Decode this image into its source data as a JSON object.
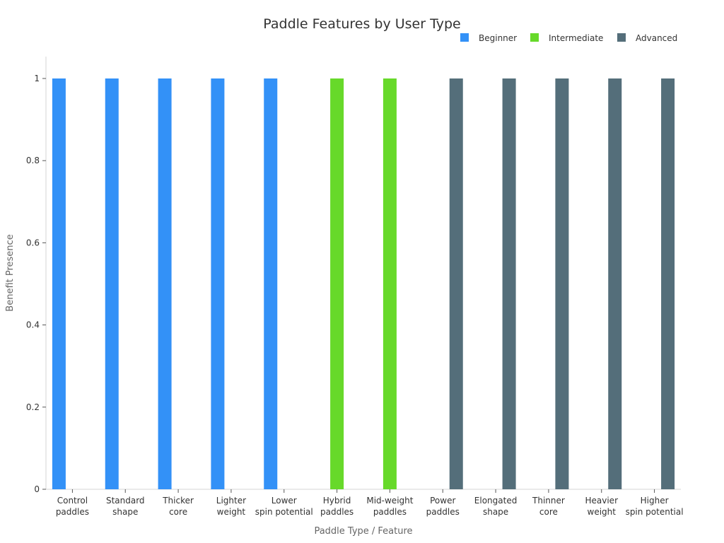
{
  "chart_data": {
    "type": "bar",
    "title": "Paddle Features by User Type",
    "xlabel": "Paddle Type / Feature",
    "ylabel": "Benefit Presence",
    "ylim": [
      0,
      1
    ],
    "yticks": [
      "0",
      "0.2",
      "0.4",
      "0.6",
      "0.8",
      "1"
    ],
    "grid": false,
    "legend_position": "top-right",
    "categories": [
      [
        "Control",
        "paddles"
      ],
      [
        "Standard",
        "shape"
      ],
      [
        "Thicker",
        "core"
      ],
      [
        "Lighter",
        "weight"
      ],
      [
        "Lower",
        "spin potential"
      ],
      [
        "Hybrid",
        "paddles"
      ],
      [
        "Mid-weight",
        "paddles"
      ],
      [
        "Power",
        "paddles"
      ],
      [
        "Elongated",
        "shape"
      ],
      [
        "Thinner",
        "core"
      ],
      [
        "Heavier",
        "weight"
      ],
      [
        "Higher",
        "spin potential"
      ]
    ],
    "series": [
      {
        "name": "Beginner",
        "color": "#3391F7",
        "values": [
          1,
          1,
          1,
          1,
          1,
          0,
          0,
          0,
          0,
          0,
          0,
          0
        ]
      },
      {
        "name": "Intermediate",
        "color": "#67D92A",
        "values": [
          0,
          0,
          0,
          0,
          0,
          1,
          1,
          0,
          0,
          0,
          0,
          0
        ]
      },
      {
        "name": "Advanced",
        "color": "#546E7A",
        "values": [
          0,
          0,
          0,
          0,
          0,
          0,
          0,
          1,
          1,
          1,
          1,
          1
        ]
      }
    ]
  }
}
